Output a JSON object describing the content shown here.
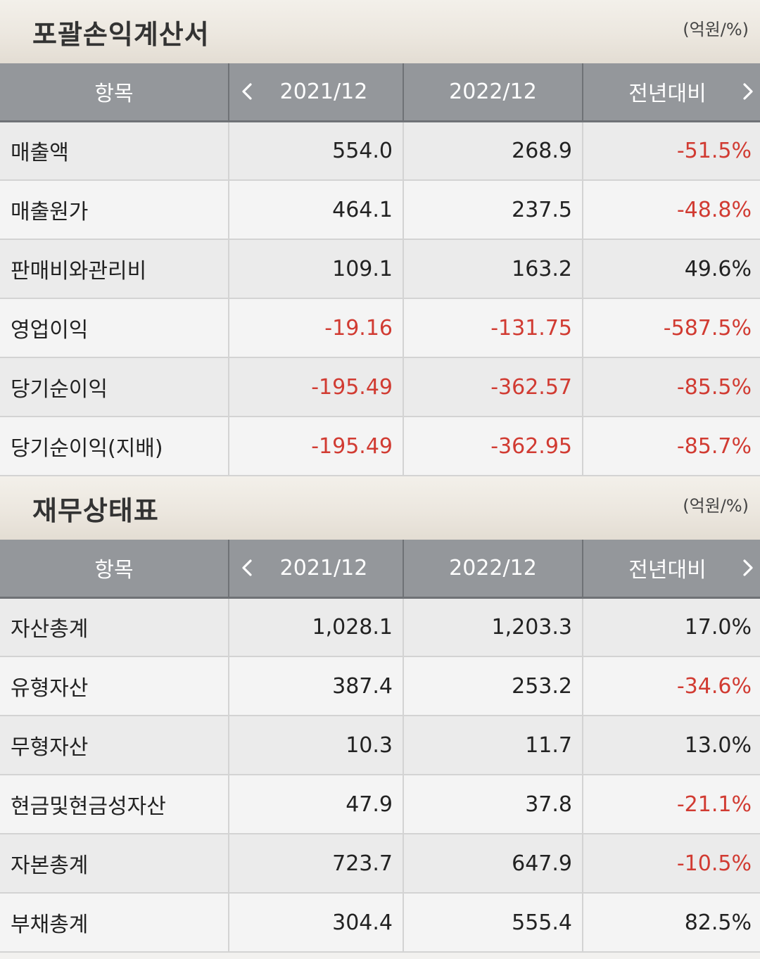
{
  "income": {
    "title": "포괄손익계산서",
    "unit": "(억원/%)",
    "headers": [
      "항목",
      "2021/12",
      "2022/12",
      "전년대비"
    ],
    "rows": [
      {
        "label": "매출액",
        "v2021": "554.0",
        "v2022": "268.9",
        "yoy": "-51.5%"
      },
      {
        "label": "매출원가",
        "v2021": "464.1",
        "v2022": "237.5",
        "yoy": "-48.8%"
      },
      {
        "label": "판매비와관리비",
        "v2021": "109.1",
        "v2022": "163.2",
        "yoy": "49.6%"
      },
      {
        "label": "영업이익",
        "v2021": "-19.16",
        "v2022": "-131.75",
        "yoy": "-587.5%"
      },
      {
        "label": "당기순이익",
        "v2021": "-195.49",
        "v2022": "-362.57",
        "yoy": "-85.5%"
      },
      {
        "label": "당기순이익(지배)",
        "v2021": "-195.49",
        "v2022": "-362.95",
        "yoy": "-85.7%"
      }
    ]
  },
  "balance": {
    "title": "재무상태표",
    "unit": "(억원/%)",
    "headers": [
      "항목",
      "2021/12",
      "2022/12",
      "전년대비"
    ],
    "rows": [
      {
        "label": "자산총계",
        "v2021": "1,028.1",
        "v2022": "1,203.3",
        "yoy": "17.0%"
      },
      {
        "label": "유형자산",
        "v2021": "387.4",
        "v2022": "253.2",
        "yoy": "-34.6%"
      },
      {
        "label": "무형자산",
        "v2021": "10.3",
        "v2022": "11.7",
        "yoy": "13.0%"
      },
      {
        "label": "현금및현금성자산",
        "v2021": "47.9",
        "v2022": "37.8",
        "yoy": "-21.1%"
      },
      {
        "label": "자본총계",
        "v2021": "723.7",
        "v2022": "647.9",
        "yoy": "-10.5%"
      },
      {
        "label": "부채총계",
        "v2021": "304.4",
        "v2022": "555.4",
        "yoy": "82.5%"
      }
    ]
  },
  "icons": {
    "prev": "chevron-left-icon",
    "next": "chevron-right-icon"
  },
  "colors": {
    "header_bg": "#94979b",
    "negative": "#d13b32"
  }
}
